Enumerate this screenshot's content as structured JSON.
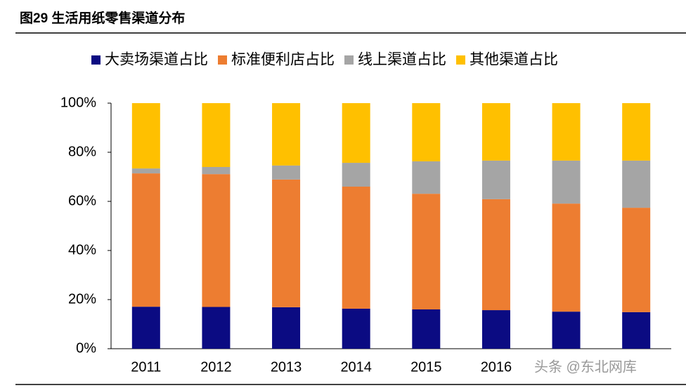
{
  "chart_data": {
    "type": "stacked_bar",
    "title": "图29 生活用纸零售渠道分布",
    "categories": [
      "2011",
      "2012",
      "2013",
      "2014",
      "2015",
      "2016",
      null,
      null
    ],
    "series": [
      {
        "name": "大卖场渠道占比",
        "color": "#0b0b82",
        "values": [
          17.1,
          17,
          16.9,
          16.3,
          16,
          15.7,
          15.1,
          14.9
        ]
      },
      {
        "name": "标准便利店占比",
        "color": "#ed7d31",
        "values": [
          54.3,
          54.1,
          52,
          49.7,
          47.1,
          45.2,
          44,
          42.5
        ]
      },
      {
        "name": "线上渠道占比",
        "color": "#a5a5a5",
        "values": [
          2,
          2.9,
          5.7,
          9.7,
          13.2,
          15.7,
          17.5,
          19.2
        ]
      },
      {
        "name": "其他渠道占比",
        "color": "#ffc000",
        "values": [
          26.6,
          26,
          25.4,
          24.3,
          23.7,
          23.4,
          23.4,
          23.4
        ]
      }
    ],
    "ylim": [
      0,
      100
    ],
    "yticks": [
      {
        "value": 0,
        "label": "0%"
      },
      {
        "value": 20,
        "label": "20%"
      },
      {
        "value": 40,
        "label": "40%"
      },
      {
        "value": 60,
        "label": "60%"
      },
      {
        "value": 80,
        "label": "80%"
      },
      {
        "value": 100,
        "label": "100%"
      }
    ],
    "legend": "top",
    "watermark": "头条 @东北网库"
  }
}
